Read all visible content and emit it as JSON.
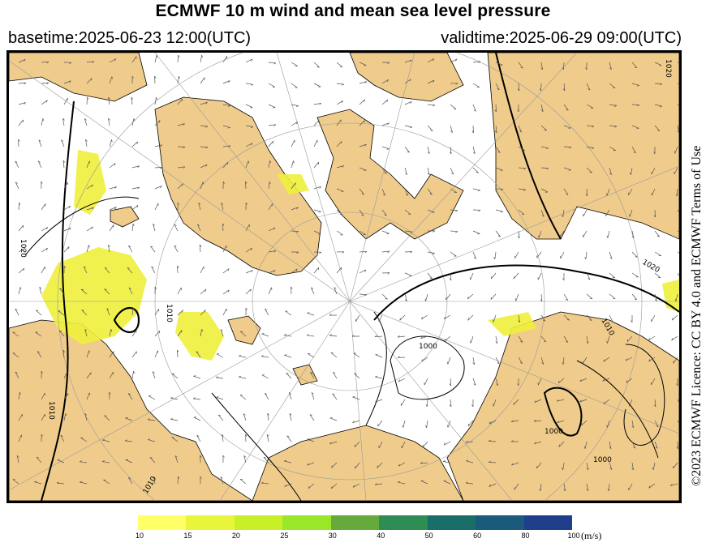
{
  "header": {
    "title": "ECMWF 10 m wind and mean sea level pressure",
    "basetime": "basetime:2025-06-23 12:00(UTC)",
    "validtime": "validtime:2025-06-29 09:00(UTC)"
  },
  "licence": "©2023 ECMWF Licence: CC BY 4.0 and ECMWF Terms of Use",
  "legend": {
    "unit": "(m/s)",
    "ticks": [
      "10",
      "15",
      "20",
      "25",
      "30",
      "40",
      "50",
      "60",
      "80",
      "100"
    ],
    "colors": [
      "#ffff66",
      "#e8f53a",
      "#c8f028",
      "#9ae628",
      "#66aa3c",
      "#2e8c55",
      "#1a6e6a",
      "#1a5a7a",
      "#1f3e8c",
      "#2a2aa8"
    ]
  },
  "map": {
    "colors": {
      "land": "#f0cc8c",
      "sea": "#ffffff",
      "wind_highlight": "#eef03c",
      "isobar": "#000000",
      "graticule": "#888888"
    },
    "contour_labels": [
      "1020",
      "1010",
      "1000",
      "1010",
      "1020",
      "1020",
      "1000",
      "1010",
      "1010",
      "1000"
    ]
  }
}
